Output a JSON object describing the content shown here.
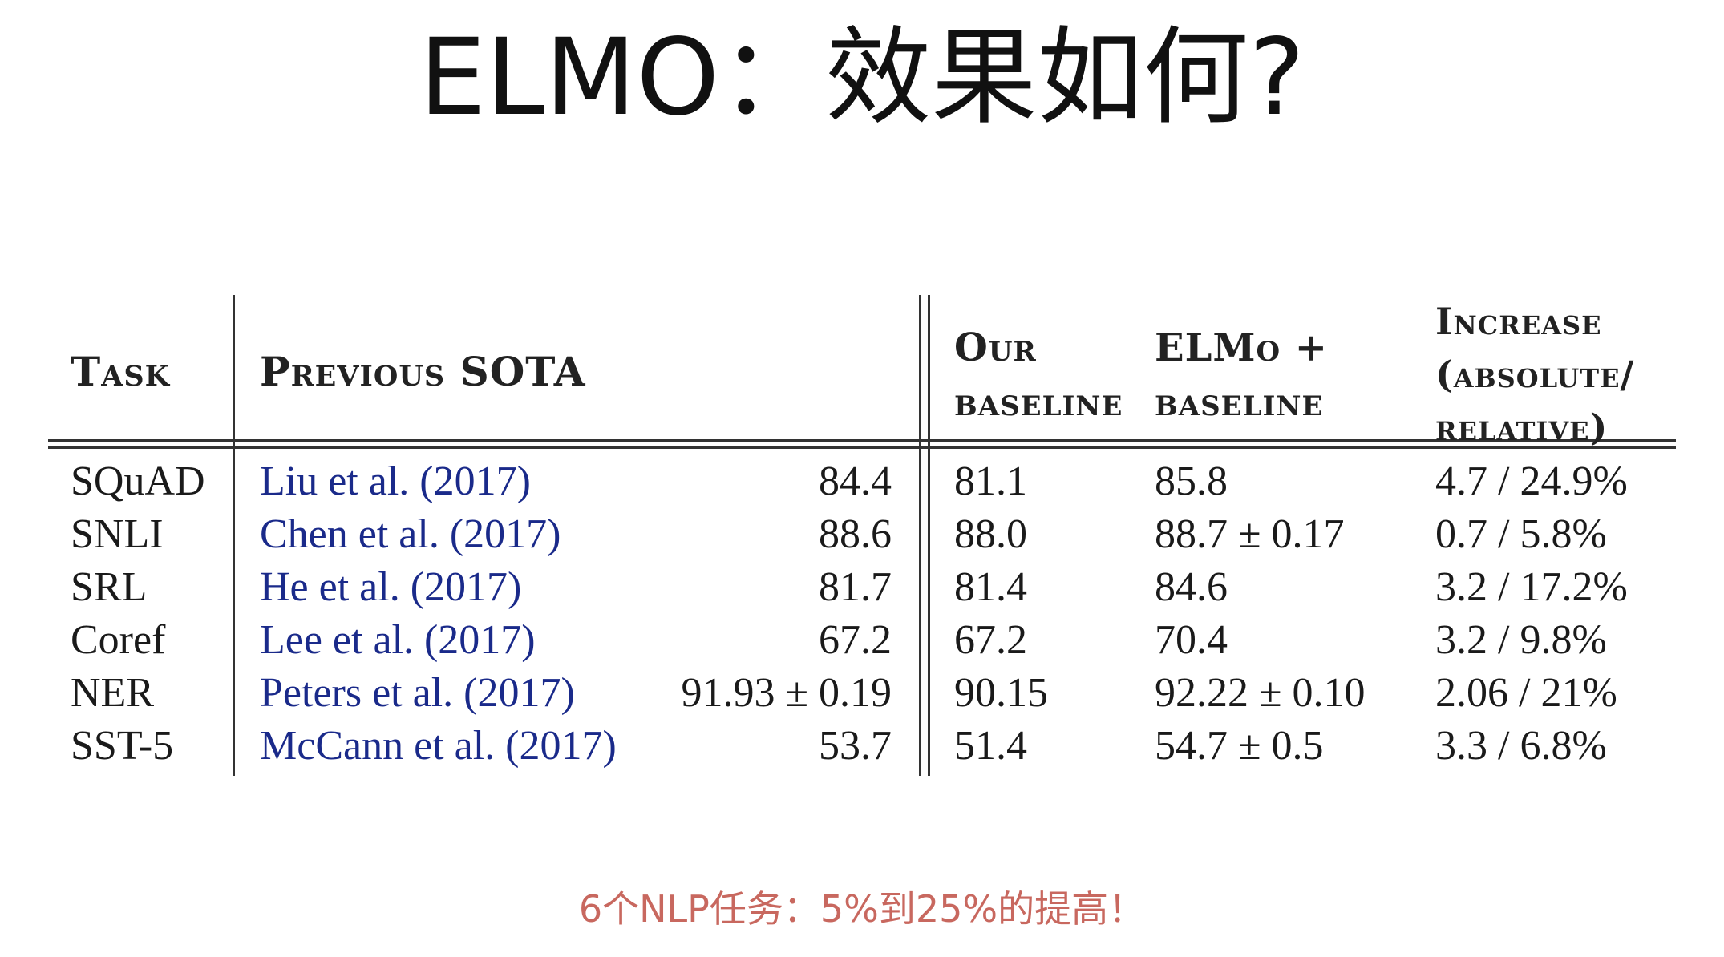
{
  "title": "ELMO：效果如何?",
  "table": {
    "headers": {
      "task": "Task",
      "previous_sota": "Previous SOTA",
      "our_baseline": [
        "Our",
        "baseline"
      ],
      "elmo_baseline": [
        "ELMo +",
        "baseline"
      ],
      "increase": [
        "Increase",
        "(absolute/",
        "relative)"
      ]
    },
    "rows": [
      {
        "task": "SQuAD",
        "citation": "Liu et al. (2017)",
        "sota": "84.4",
        "baseline": "81.1",
        "elmo": "85.8",
        "increase": "4.7 / 24.9%"
      },
      {
        "task": "SNLI",
        "citation": "Chen et al. (2017)",
        "sota": "88.6",
        "baseline": "88.0",
        "elmo": "88.7 ± 0.17",
        "increase": "0.7 / 5.8%"
      },
      {
        "task": "SRL",
        "citation": "He et al. (2017)",
        "sota": "81.7",
        "baseline": "81.4",
        "elmo": "84.6",
        "increase": "3.2 / 17.2%"
      },
      {
        "task": "Coref",
        "citation": "Lee et al. (2017)",
        "sota": "67.2",
        "baseline": "67.2",
        "elmo": "70.4",
        "increase": "3.2 / 9.8%"
      },
      {
        "task": "NER",
        "citation": "Peters et al. (2017)",
        "sota": "91.93 ± 0.19",
        "baseline": "90.15",
        "elmo": "92.22 ± 0.10",
        "increase": "2.06 / 21%"
      },
      {
        "task": "SST-5",
        "citation": "McCann et al. (2017)",
        "sota": "53.7",
        "baseline": "51.4",
        "elmo": "54.7 ± 0.5",
        "increase": "3.3 / 6.8%"
      }
    ]
  },
  "caption": "6个NLP任务：5%到25%的提高！",
  "colors": {
    "citation_link": "#1a2a8a",
    "caption": "#c8685f",
    "text": "#1a1a1a"
  }
}
